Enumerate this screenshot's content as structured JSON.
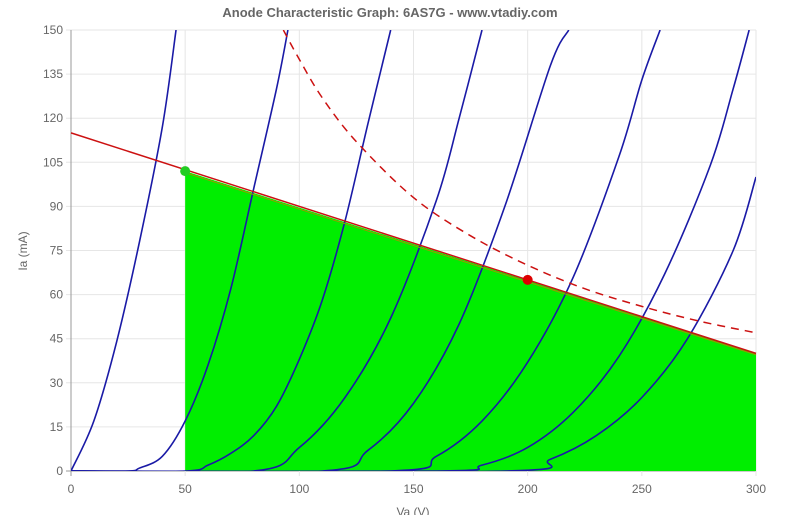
{
  "chart_data": {
    "type": "line",
    "title": "Anode Characteristic Graph: 6AS7G - www.vtadiy.com",
    "xlabel": "Va (V)",
    "ylabel": "Ia (mA)",
    "xlim": [
      0,
      300
    ],
    "ylim": [
      0,
      150
    ],
    "x_ticks": [
      "0",
      "50",
      "100",
      "150",
      "200",
      "250",
      "300"
    ],
    "y_ticks": [
      "0",
      "15",
      "30",
      "45",
      "60",
      "75",
      "90",
      "105",
      "120",
      "135",
      "150"
    ],
    "grid": true,
    "legend": "none",
    "colors": {
      "curves": "#1a1aa6",
      "load_line": "#cc1111",
      "dissipation": "#cc1111",
      "fill": "#00ee00",
      "fill_border": "#999900",
      "operating_point": "#dd0000",
      "cutoff_point": "#22cc22",
      "grid": "#e6e6e6",
      "axis": "#999999"
    },
    "curves": [
      {
        "x": [
          0,
          10,
          20,
          30,
          40,
          46
        ],
        "y": [
          0,
          17,
          44,
          78,
          117,
          150
        ]
      },
      {
        "x": [
          0,
          25,
          30,
          40,
          50,
          60,
          70,
          80,
          90,
          95
        ],
        "y": [
          0,
          0,
          1,
          5,
          17,
          36,
          62,
          96,
          130,
          150
        ]
      },
      {
        "x": [
          0,
          50,
          60,
          70,
          80,
          90,
          100,
          110,
          120,
          130,
          140
        ],
        "y": [
          0,
          0,
          2,
          6,
          12,
          22,
          38,
          58,
          85,
          118,
          150
        ]
      },
      {
        "x": [
          0,
          80,
          100,
          120,
          140,
          160,
          170,
          180
        ],
        "y": [
          0,
          0,
          8,
          25,
          52,
          92,
          120,
          150
        ]
      },
      {
        "x": [
          0,
          110,
          130,
          150,
          170,
          190,
          210,
          218
        ],
        "y": [
          0,
          0,
          7,
          23,
          50,
          90,
          138,
          150
        ]
      },
      {
        "x": [
          0,
          140,
          160,
          180,
          200,
          220,
          240,
          250,
          258
        ],
        "y": [
          0,
          0,
          5,
          17,
          37,
          66,
          107,
          133,
          150
        ]
      },
      {
        "x": [
          0,
          160,
          180,
          200,
          220,
          240,
          260,
          280,
          290,
          297
        ],
        "y": [
          0,
          0,
          2,
          8,
          20,
          39,
          67,
          104,
          130,
          150
        ]
      },
      {
        "x": [
          0,
          190,
          210,
          230,
          250,
          270,
          290,
          300
        ],
        "y": [
          0,
          0,
          4,
          12,
          25,
          45,
          75,
          100
        ]
      }
    ],
    "load_line": {
      "x": [
        0,
        300
      ],
      "y": [
        115,
        40
      ]
    },
    "dissipation_curve": {
      "x": [
        93,
        100,
        110,
        125,
        150,
        175,
        200,
        225,
        250,
        275,
        300
      ],
      "y": [
        150,
        140,
        127,
        112,
        93,
        80,
        70,
        62,
        56,
        51,
        47
      ]
    },
    "operating_point": {
      "x": 200,
      "y": 65
    },
    "cutoff_point": {
      "x": 50,
      "y": 102
    },
    "shaded_region": {
      "x": [
        50,
        300
      ],
      "y_top": [
        102,
        40
      ]
    }
  }
}
